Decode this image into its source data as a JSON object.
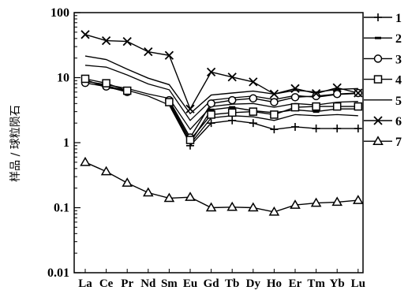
{
  "chart_data": {
    "type": "line",
    "title": "",
    "xlabel": "",
    "ylabel": "样品 / 球粒陨石",
    "yscale": "log",
    "ylim": [
      0.01,
      100
    ],
    "yticks": [
      "0.01",
      "0.1",
      "1",
      "10",
      "100"
    ],
    "ytick_values": [
      0.01,
      0.1,
      1,
      10,
      100
    ],
    "categories": [
      "La",
      "Ce",
      "Pr",
      "Nd",
      "Sm",
      "Eu",
      "Gd",
      "Tb",
      "Dy",
      "Ho",
      "Er",
      "Tm",
      "Yb",
      "Lu"
    ],
    "legend_position": "right",
    "series": [
      {
        "name": "1",
        "marker": "plus",
        "values": [
          null,
          null,
          null,
          null,
          null,
          0.9,
          2.0,
          2.2,
          2.0,
          1.6,
          1.75,
          1.65,
          1.65,
          1.65
        ]
      },
      {
        "name": "2",
        "marker": "dash",
        "values": [
          9.0,
          7.5,
          6.2,
          null,
          4.0,
          1.0,
          3.2,
          3.5,
          3.1,
          2.9,
          3.2,
          3.0,
          3.3,
          3.3
        ]
      },
      {
        "name": "3",
        "marker": "circle",
        "values": [
          8.3,
          7.3,
          6.0,
          null,
          4.5,
          1.2,
          4.0,
          4.5,
          4.8,
          4.2,
          5.0,
          5.2,
          5.6,
          5.8
        ]
      },
      {
        "name": "4",
        "marker": "square",
        "values": [
          9.6,
          8.2,
          6.3,
          null,
          4.2,
          1.1,
          2.7,
          2.9,
          3.0,
          2.7,
          3.5,
          3.6,
          3.6,
          3.6
        ]
      },
      {
        "name": "5",
        "marker": "none",
        "values": [
          21.5,
          19.0,
          13.5,
          9.8,
          7.8,
          2.8,
          5.4,
          5.8,
          6.2,
          5.6,
          6.4,
          6.0,
          6.6,
          6.8
        ]
      },
      {
        "name": "6",
        "marker": "x",
        "values": [
          46,
          37,
          36,
          25,
          22,
          3.3,
          12.2,
          10.2,
          8.6,
          5.6,
          6.8,
          5.7,
          7.0,
          5.8
        ]
      },
      {
        "name": "7",
        "marker": "triangle",
        "values": [
          0.5,
          0.36,
          0.24,
          0.17,
          0.14,
          0.145,
          0.1,
          0.102,
          0.1,
          0.086,
          0.11,
          0.118,
          0.122,
          0.13
        ]
      }
    ],
    "extra_lines": [
      {
        "values": [
          15.5,
          14.5,
          11.0,
          8.0,
          6.5,
          2.2,
          4.5,
          4.9,
          5.2,
          4.6,
          5.3,
          5.0,
          5.5,
          5.7
        ]
      },
      {
        "values": [
          8.8,
          7.8,
          6.8,
          5.6,
          4.8,
          1.6,
          3.6,
          3.9,
          4.0,
          3.5,
          4.0,
          3.8,
          4.2,
          4.3
        ]
      },
      {
        "values": [
          9.4,
          7.0,
          6.4,
          5.2,
          3.8,
          0.95,
          2.4,
          2.6,
          2.5,
          2.2,
          2.7,
          2.6,
          2.7,
          2.6
        ]
      }
    ]
  }
}
